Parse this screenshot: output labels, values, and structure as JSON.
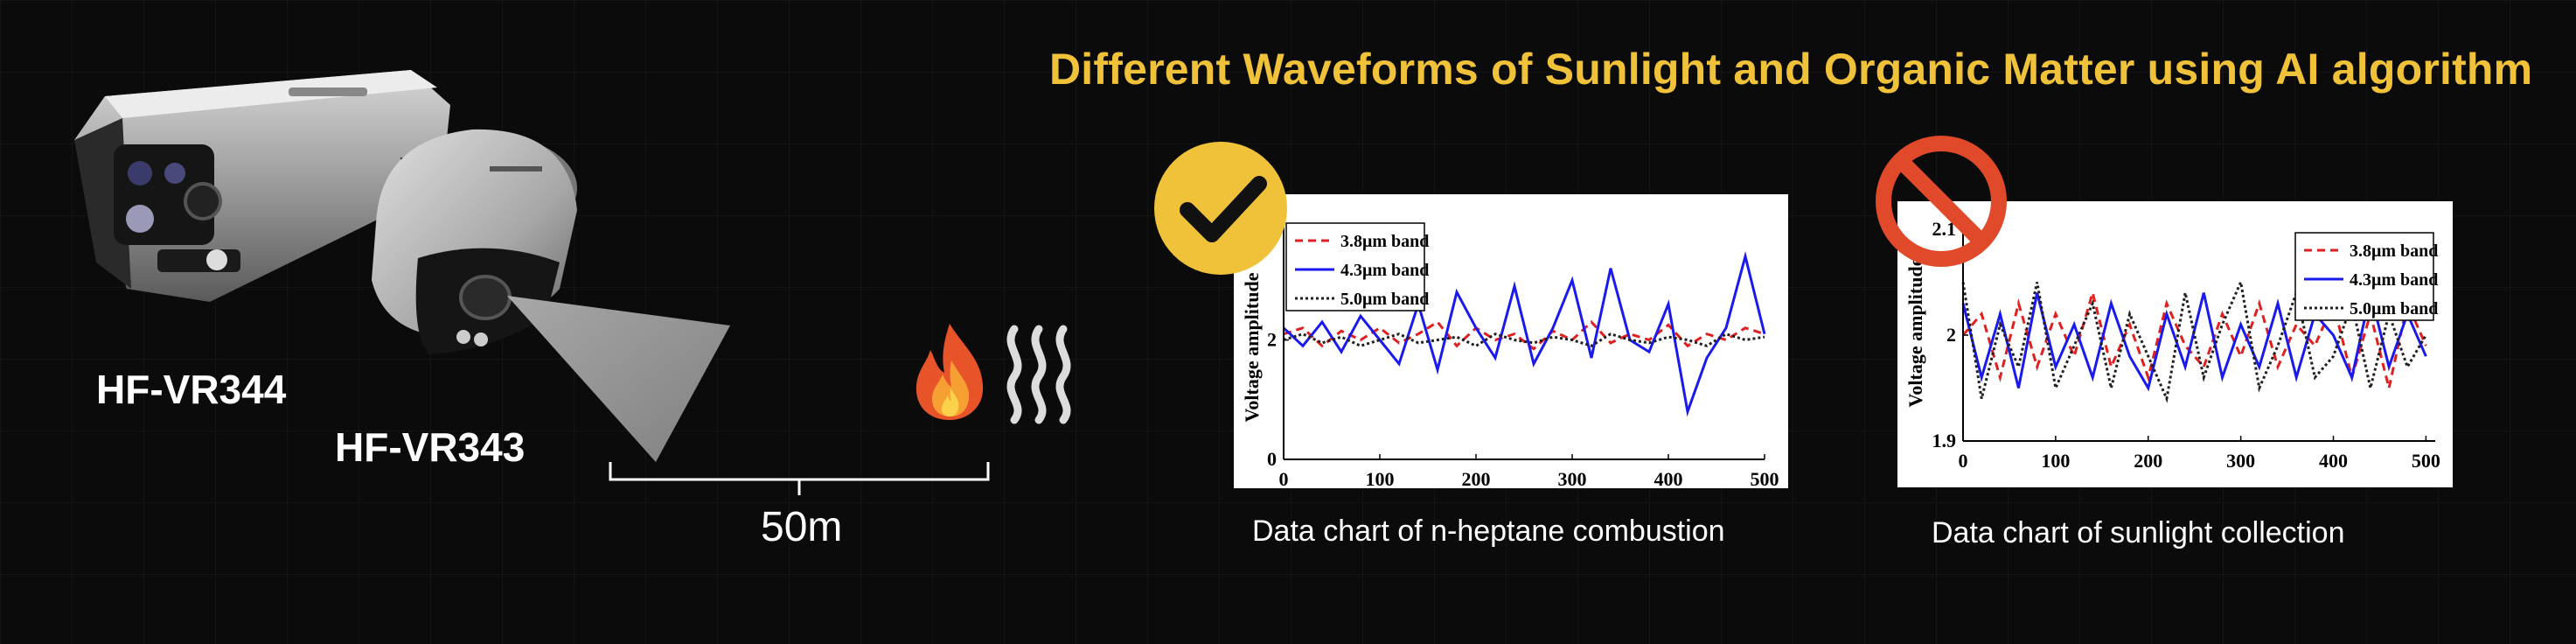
{
  "title": "Different Waveforms of Sunlight and Organic Matter using AI algorithm",
  "cameras": {
    "model_a": "HF-VR344",
    "model_b": "HF-VR343"
  },
  "distance_label": "50m",
  "icons": {
    "valid_badge": "checkmark-icon",
    "invalid_badge": "prohibited-icon",
    "flame": "flame-icon",
    "heat": "heat-waves-icon"
  },
  "colors": {
    "accent": "#f0c23a",
    "check_badge": "#f0c23a",
    "prohibit": "#e04a2a",
    "band_38": "#e02020",
    "band_43": "#1a1aee",
    "band_50": "#202020"
  },
  "charts": {
    "heptane": {
      "caption": "Data chart of n-heptane combustion"
    },
    "sunlight": {
      "caption": "Data chart of sunlight collection"
    }
  },
  "chart_data": [
    {
      "type": "line",
      "ylabel": "Voltage amplitude",
      "xlim": [
        0,
        500
      ],
      "x_ticks": [
        "0",
        "100",
        "200",
        "300",
        "400",
        "500"
      ],
      "y_ticks": [
        "0",
        "2"
      ],
      "ylim": [
        0,
        4
      ],
      "legend": "top-left",
      "grid": false,
      "series": [
        {
          "name": "3.8μm band",
          "style": "dashed",
          "x": [
            0,
            20,
            40,
            60,
            80,
            100,
            120,
            140,
            160,
            180,
            200,
            220,
            240,
            260,
            280,
            300,
            320,
            340,
            360,
            380,
            400,
            420,
            440,
            460,
            480,
            500
          ],
          "y": [
            2.1,
            2.2,
            1.9,
            2.15,
            2.0,
            2.2,
            1.95,
            2.1,
            2.3,
            1.9,
            2.2,
            2.0,
            2.1,
            1.85,
            2.15,
            2.0,
            2.3,
            1.95,
            2.1,
            2.0,
            2.25,
            1.9,
            2.1,
            2.0,
            2.2,
            2.1
          ]
        },
        {
          "name": "4.3μm band",
          "style": "solid",
          "x": [
            0,
            20,
            40,
            60,
            80,
            100,
            120,
            140,
            160,
            180,
            200,
            220,
            240,
            260,
            280,
            300,
            320,
            340,
            360,
            380,
            400,
            420,
            440,
            460,
            480,
            500
          ],
          "y": [
            2.2,
            1.9,
            2.3,
            1.8,
            2.4,
            2.0,
            1.6,
            2.6,
            1.5,
            2.8,
            2.2,
            1.7,
            2.9,
            1.6,
            2.2,
            3.0,
            1.7,
            3.2,
            2.0,
            1.8,
            2.6,
            0.8,
            1.7,
            2.2,
            3.4,
            2.1
          ]
        },
        {
          "name": "5.0μm band",
          "style": "dotted",
          "x": [
            0,
            20,
            40,
            60,
            80,
            100,
            120,
            140,
            160,
            180,
            200,
            220,
            240,
            260,
            280,
            300,
            320,
            340,
            360,
            380,
            400,
            420,
            440,
            460,
            480,
            500
          ],
          "y": [
            2.0,
            2.1,
            1.95,
            2.05,
            1.9,
            2.0,
            2.1,
            1.95,
            2.0,
            2.05,
            1.9,
            2.1,
            2.0,
            1.95,
            2.05,
            2.0,
            1.9,
            2.1,
            2.0,
            1.95,
            2.05,
            2.0,
            1.9,
            2.1,
            2.0,
            2.05
          ]
        }
      ]
    },
    {
      "type": "line",
      "ylabel": "Voltage amplitude",
      "xlim": [
        0,
        510
      ],
      "x_ticks": [
        "0",
        "100",
        "200",
        "300",
        "400",
        "500"
      ],
      "y_ticks": [
        "1.9",
        "2",
        "2.1"
      ],
      "ylim": [
        1.9,
        2.1
      ],
      "legend": "top-right",
      "grid": false,
      "series": [
        {
          "name": "3.8μm band",
          "style": "dashed",
          "x": [
            0,
            20,
            40,
            60,
            80,
            100,
            120,
            140,
            160,
            180,
            200,
            220,
            240,
            260,
            280,
            300,
            320,
            340,
            360,
            380,
            400,
            420,
            440,
            460,
            480,
            500
          ],
          "y": [
            2.0,
            2.02,
            1.96,
            2.03,
            1.97,
            2.02,
            1.98,
            2.04,
            1.97,
            2.01,
            1.96,
            2.03,
            1.99,
            1.97,
            2.02,
            1.98,
            2.03,
            1.97,
            2.01,
            1.99,
            2.03,
            1.96,
            2.02,
            1.95,
            2.03,
            1.99
          ]
        },
        {
          "name": "4.3μm band",
          "style": "solid",
          "x": [
            0,
            20,
            40,
            60,
            80,
            100,
            120,
            140,
            160,
            180,
            200,
            220,
            240,
            260,
            280,
            300,
            320,
            340,
            360,
            380,
            400,
            420,
            440,
            460,
            480,
            500
          ],
          "y": [
            2.03,
            1.96,
            2.02,
            1.95,
            2.04,
            1.97,
            2.01,
            1.96,
            2.03,
            1.98,
            1.95,
            2.02,
            1.97,
            2.04,
            1.96,
            2.01,
            1.97,
            2.03,
            1.96,
            2.02,
            2.0,
            1.96,
            2.04,
            1.97,
            2.02,
            1.98
          ]
        },
        {
          "name": "5.0μm band",
          "style": "dotted",
          "x": [
            0,
            20,
            40,
            60,
            80,
            100,
            120,
            140,
            160,
            180,
            200,
            220,
            240,
            260,
            280,
            300,
            320,
            340,
            360,
            380,
            400,
            420,
            440,
            460,
            480,
            500
          ],
          "y": [
            2.05,
            1.94,
            2.01,
            1.97,
            2.05,
            1.95,
            1.99,
            2.03,
            1.95,
            2.02,
            1.98,
            1.94,
            2.04,
            1.96,
            2.01,
            2.05,
            1.95,
            1.99,
            2.04,
            1.96,
            1.98,
            2.03,
            1.95,
            2.02,
            1.97,
            2.0
          ]
        }
      ]
    }
  ]
}
